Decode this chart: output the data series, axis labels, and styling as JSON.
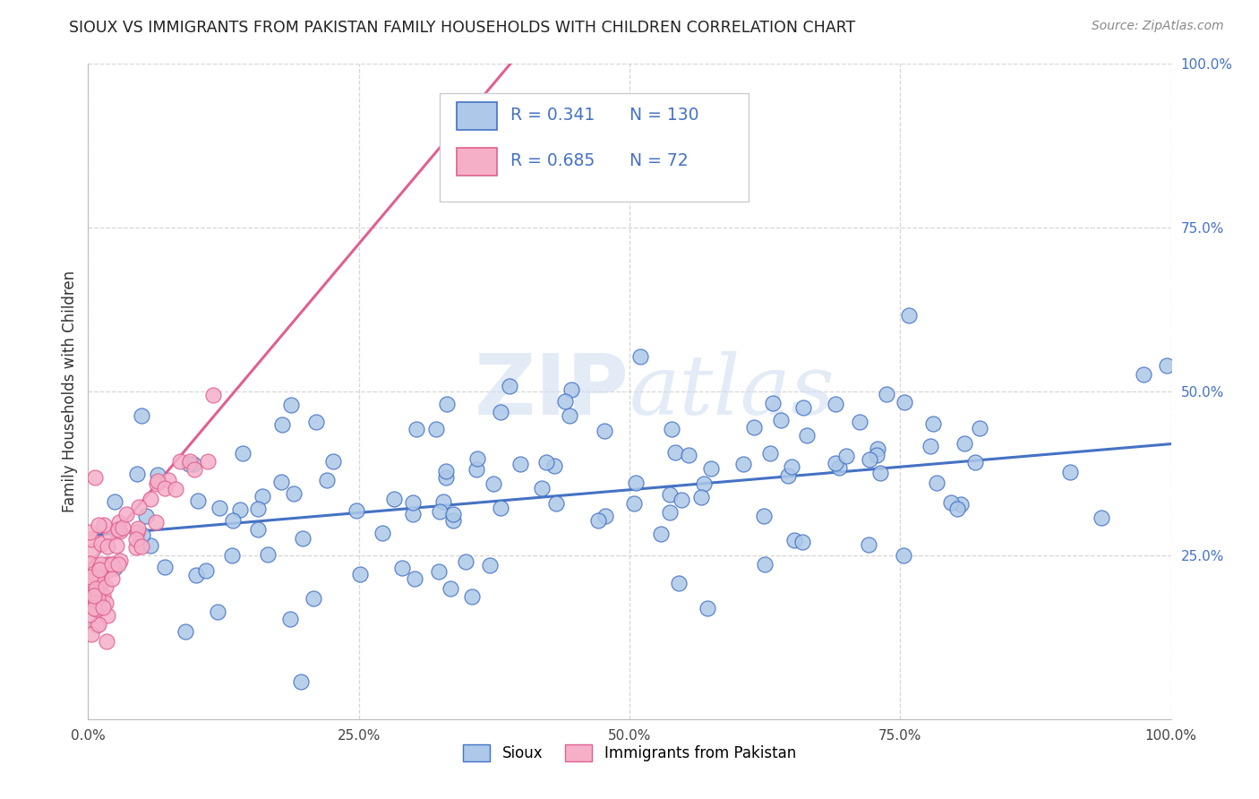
{
  "title": "SIOUX VS IMMIGRANTS FROM PAKISTAN FAMILY HOUSEHOLDS WITH CHILDREN CORRELATION CHART",
  "source": "Source: ZipAtlas.com",
  "ylabel": "Family Households with Children",
  "xlim": [
    0.0,
    1.0
  ],
  "ylim": [
    0.0,
    1.0
  ],
  "xticks": [
    0.0,
    0.25,
    0.5,
    0.75,
    1.0
  ],
  "xtick_labels": [
    "0.0%",
    "25.0%",
    "50.0%",
    "75.0%",
    "100.0%"
  ],
  "yticks": [
    0.25,
    0.5,
    0.75,
    1.0
  ],
  "ytick_labels": [
    "25.0%",
    "50.0%",
    "75.0%",
    "100.0%"
  ],
  "sioux_R": 0.341,
  "sioux_N": 130,
  "pakistan_R": 0.685,
  "pakistan_N": 72,
  "sioux_color": "#adc8e8",
  "pakistan_color": "#f5b0c8",
  "sioux_line_color": "#4472c4",
  "pakistan_line_color": "#e06090",
  "background_color": "#ffffff",
  "grid_color": "#cccccc",
  "legend_label_sioux": "Sioux",
  "legend_label_pakistan": "Immigrants from Pakistan",
  "sioux_line_x": [
    0.0,
    1.0
  ],
  "sioux_line_y": [
    0.28,
    0.42
  ],
  "pakistan_line_x": [
    -0.02,
    0.4
  ],
  "pakistan_line_y": [
    0.195,
    1.02
  ]
}
